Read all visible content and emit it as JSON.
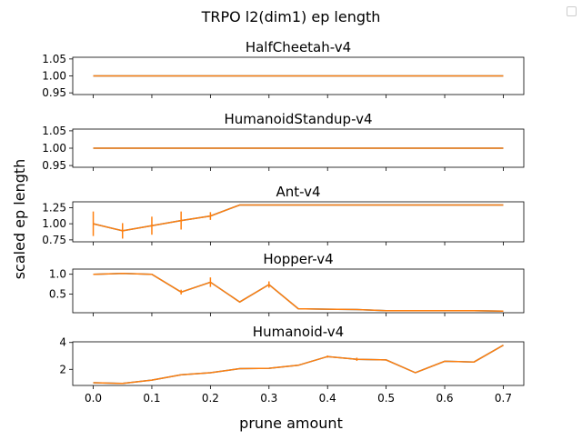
{
  "chart_data": {
    "type": "line",
    "title": "TRPO l2(dim1) ep length",
    "xlabel": "prune amount",
    "ylabel": "scaled ep length",
    "x": [
      0.0,
      0.05,
      0.1,
      0.15,
      0.2,
      0.25,
      0.3,
      0.35,
      0.4,
      0.45,
      0.5,
      0.55,
      0.6,
      0.65,
      0.7
    ],
    "xlim": [
      -0.035,
      0.735
    ],
    "xticks": [
      "0.0",
      "0.1",
      "0.2",
      "0.3",
      "0.4",
      "0.5",
      "0.6",
      "0.7"
    ],
    "colors": {
      "line": "#ff7f0e",
      "errorbar": "#ff7f0e",
      "line_under": "#1f77b4"
    },
    "legend": {
      "placement": "top-right",
      "entries": []
    },
    "grid": false,
    "subplots": [
      {
        "title": "HalfCheetah-v4",
        "ylim": [
          0.945,
          1.055
        ],
        "yticks": [
          "0.95",
          "1.00",
          "1.05"
        ],
        "values": [
          1,
          1,
          1,
          1,
          1,
          1,
          1,
          1,
          1,
          1,
          1,
          1,
          1,
          1,
          1
        ],
        "errors": [
          0,
          0,
          0,
          0,
          0,
          0,
          0,
          0,
          0,
          0,
          0,
          0,
          0,
          0,
          0
        ]
      },
      {
        "title": "HumanoidStandup-v4",
        "ylim": [
          0.945,
          1.055
        ],
        "yticks": [
          "0.95",
          "1.00",
          "1.05"
        ],
        "values": [
          1,
          1,
          1,
          1,
          1,
          1,
          1,
          1,
          1,
          1,
          1,
          1,
          1,
          1,
          1
        ],
        "errors": [
          0,
          0,
          0,
          0,
          0,
          0,
          0,
          0,
          0,
          0,
          0,
          0,
          0,
          0,
          0
        ]
      },
      {
        "title": "Ant-v4",
        "ylim": [
          0.72,
          1.34
        ],
        "yticks": [
          "0.75",
          "1.00",
          "1.25"
        ],
        "values": [
          1.0,
          0.89,
          0.97,
          1.05,
          1.12,
          1.29,
          1.29,
          1.29,
          1.29,
          1.29,
          1.29,
          1.29,
          1.29,
          1.29,
          1.29
        ],
        "errors": [
          0.19,
          0.12,
          0.14,
          0.14,
          0.06,
          0,
          0,
          0,
          0,
          0,
          0,
          0,
          0,
          0,
          0
        ]
      },
      {
        "title": "Hopper-v4",
        "ylim": [
          0.03,
          1.13
        ],
        "yticks": [
          "0.5",
          "1.0"
        ],
        "values": [
          1.0,
          1.02,
          1.0,
          0.55,
          0.8,
          0.3,
          0.74,
          0.13,
          0.12,
          0.11,
          0.08,
          0.08,
          0.08,
          0.08,
          0.07
        ],
        "errors": [
          0,
          0.01,
          0,
          0.06,
          0.12,
          0,
          0.08,
          0,
          0,
          0,
          0,
          0,
          0,
          0,
          0
        ]
      },
      {
        "title": "Humanoid-v4",
        "ylim": [
          0.8,
          4.05
        ],
        "yticks": [
          "2",
          "4"
        ],
        "values": [
          1.0,
          0.95,
          1.2,
          1.6,
          1.75,
          2.05,
          2.08,
          2.3,
          2.95,
          2.75,
          2.7,
          1.75,
          2.6,
          2.55,
          3.8
        ],
        "errors": [
          0,
          0,
          0,
          0,
          0,
          0,
          0,
          0,
          0.08,
          0.12,
          0,
          0,
          0,
          0,
          0
        ]
      }
    ]
  }
}
